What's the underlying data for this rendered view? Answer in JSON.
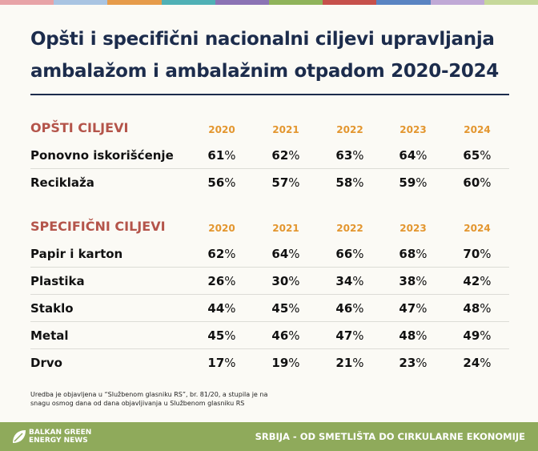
{
  "title_lines": [
    "Opšti i specifični nacionalni ciljevi upravljanja",
    "ambalažom i ambalažnim otpadom 2020-2024"
  ],
  "sections": [
    {
      "heading": "OPŠTI CILJEVI",
      "years": [
        "2020",
        "2021",
        "2022",
        "2023",
        "2024"
      ],
      "rows": [
        {
          "label": "Ponovno iskorišćenje",
          "values": [
            "61%",
            "62%",
            "63%",
            "64%",
            "65%"
          ]
        },
        {
          "label": "Reciklaža",
          "values": [
            "56%",
            "57%",
            "58%",
            "59%",
            "60%"
          ]
        }
      ]
    },
    {
      "heading": "SPECIFIČNI CILJEVI",
      "years": [
        "2020",
        "2021",
        "2022",
        "2023",
        "2024"
      ],
      "rows": [
        {
          "label": "Papir i karton",
          "values": [
            "62%",
            "64%",
            "66%",
            "68%",
            "70%"
          ]
        },
        {
          "label": "Plastika",
          "values": [
            "26%",
            "30%",
            "34%",
            "38%",
            "42%"
          ]
        },
        {
          "label": "Staklo",
          "values": [
            "44%",
            "45%",
            "46%",
            "47%",
            "48%"
          ]
        },
        {
          "label": "Metal",
          "values": [
            "45%",
            "46%",
            "47%",
            "48%",
            "49%"
          ]
        },
        {
          "label": "Drvo",
          "values": [
            "17%",
            "19%",
            "21%",
            "23%",
            "24%"
          ]
        }
      ]
    }
  ],
  "footnote_lines": [
    "Uredba je objavljena u “Službenom glasniku RS”, br. 81/20, a stupila je na",
    "snagu osmog dana od dana objavljivanja u Službenom glasniku RS"
  ],
  "footer": {
    "logo_lines": [
      "BALKAN GREEN",
      "ENERGY NEWS"
    ],
    "tagline": "SRBIJA - OD SMETLIŠTA DO CIRKULARNE EKONOMIJE"
  }
}
